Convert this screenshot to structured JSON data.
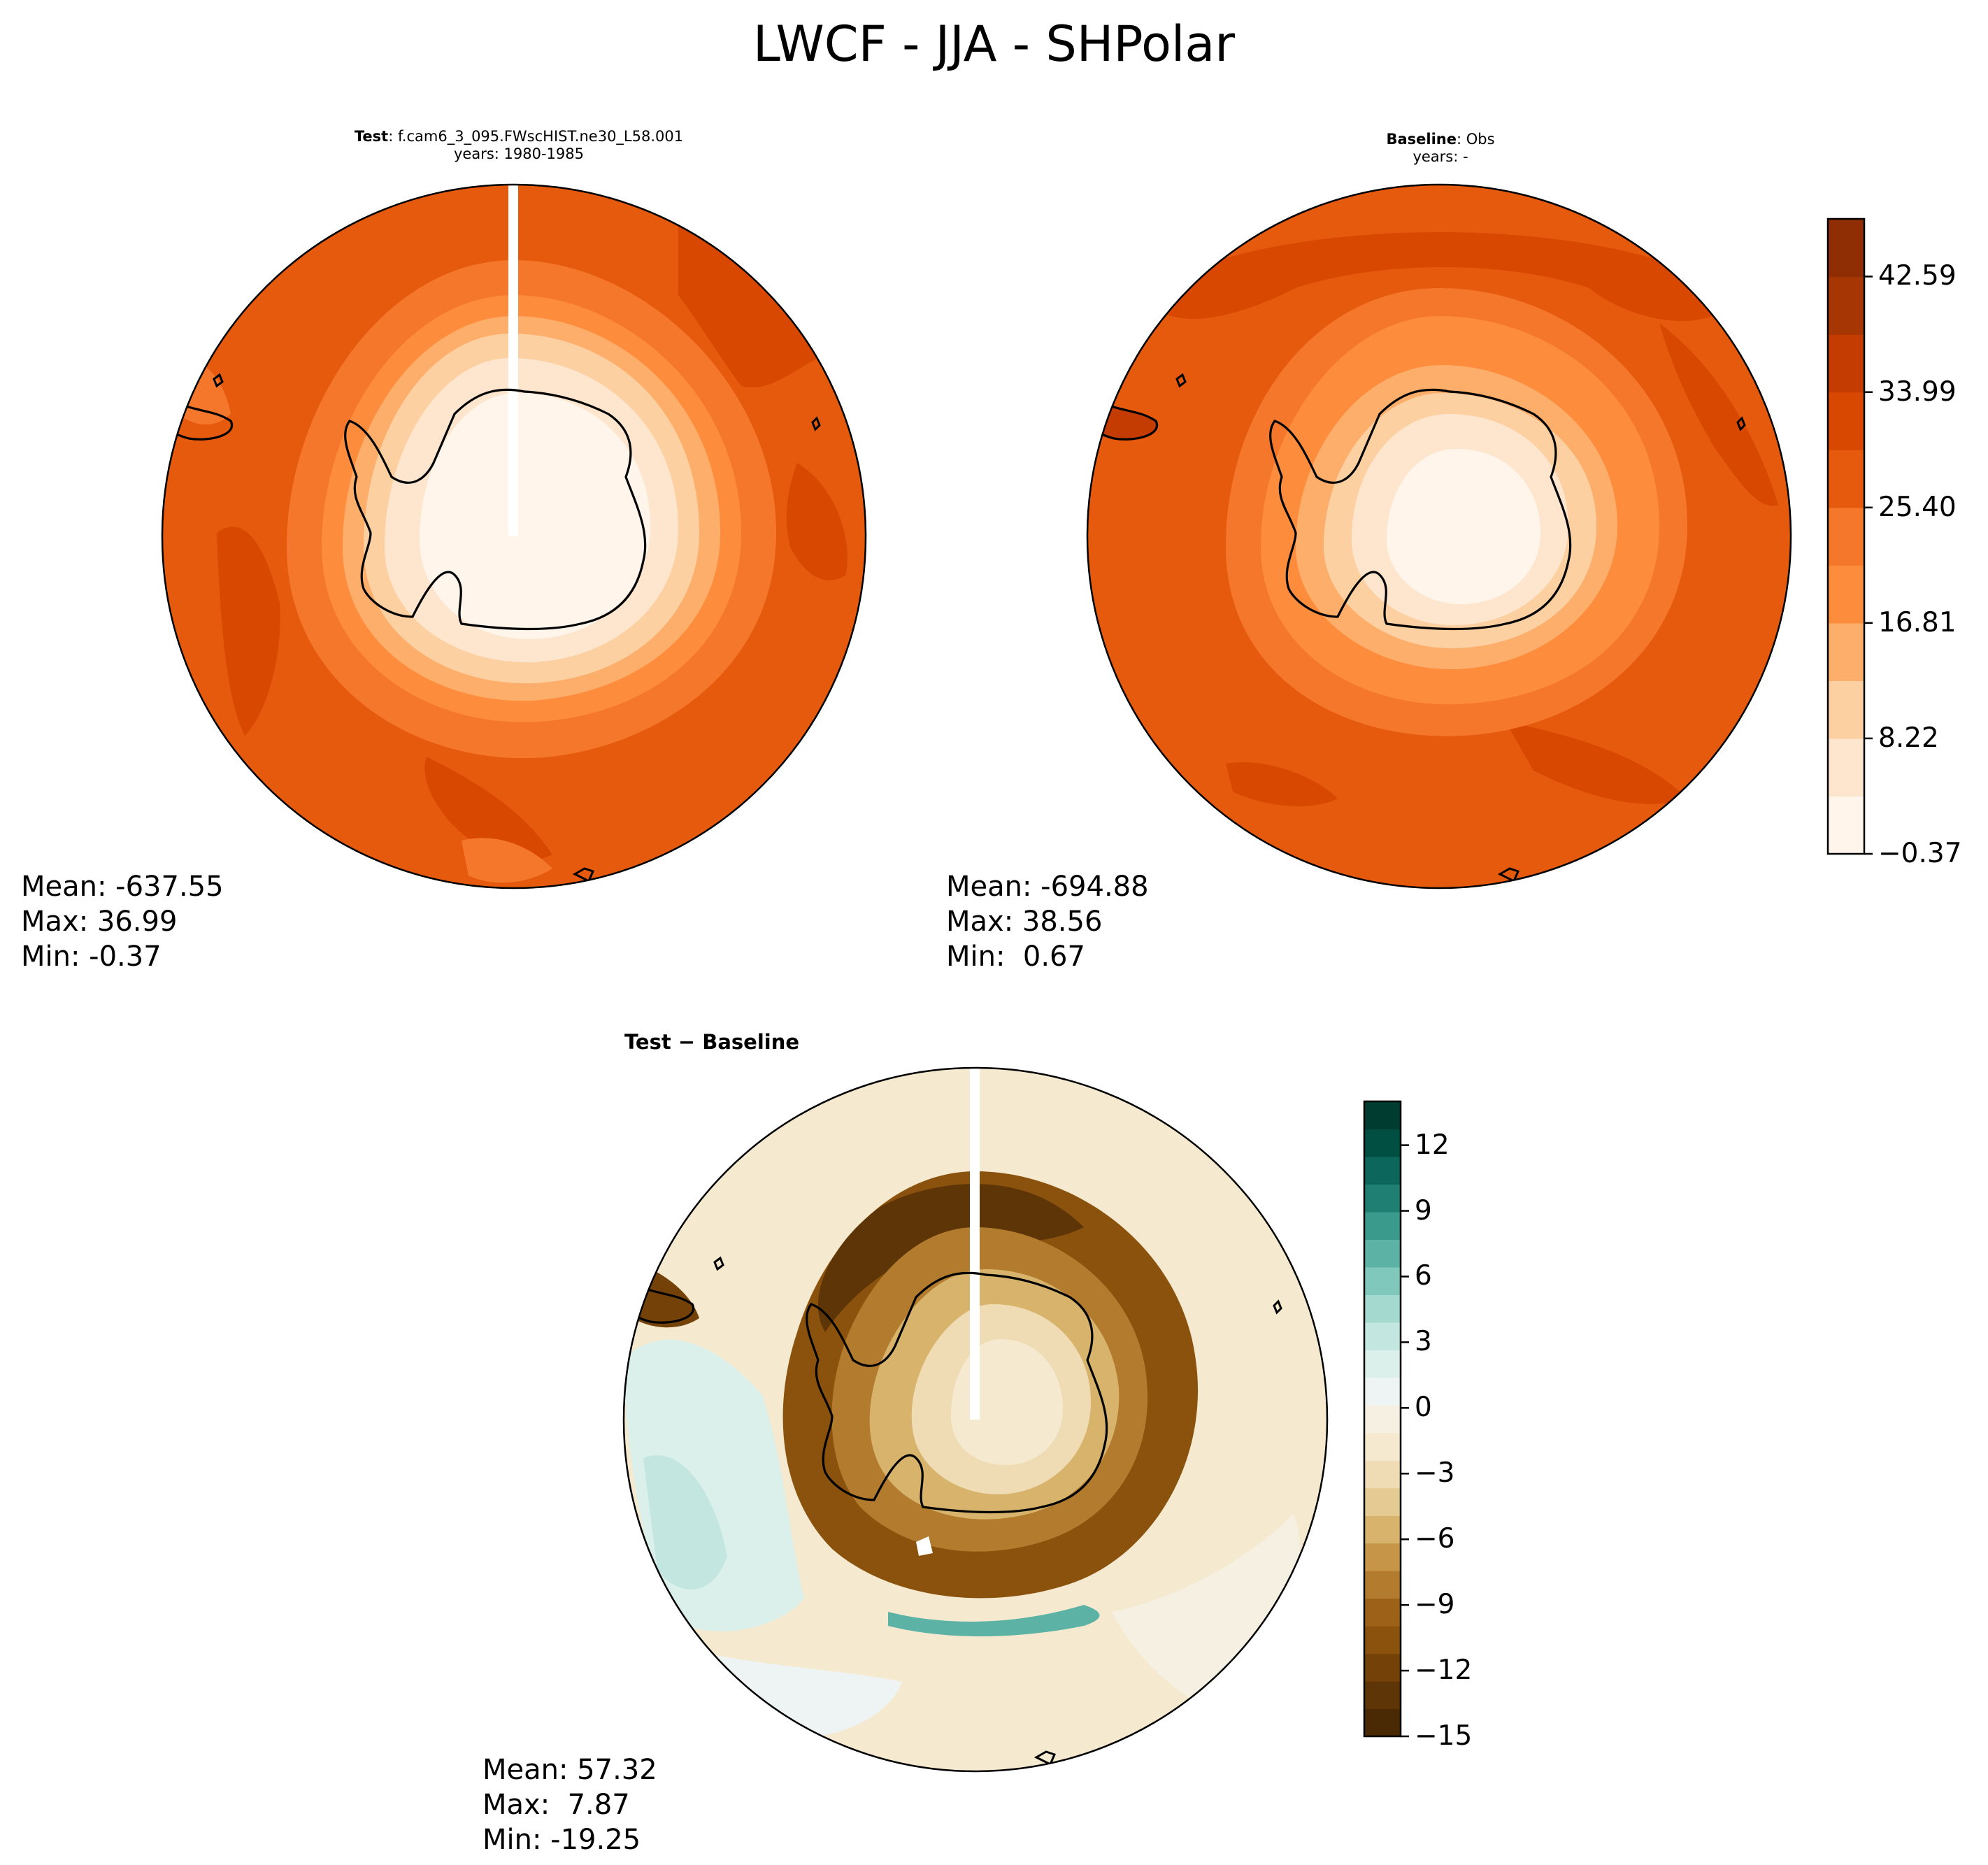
{
  "figure_title": "LWCF - JJA - SHPolar",
  "chart_data": [
    {
      "type": "heatmap",
      "panel": "test",
      "title_bold": "Test",
      "title_rest": ": f.cam6_3_095.FWscHIST.ne30_L58.001",
      "subtitle": "years: 1980-1985",
      "projection": "south-polar-stereographic",
      "stats": {
        "mean": "Mean: -637.55",
        "max": "Max: 36.99",
        "min": "Min: -0.37"
      },
      "field_range": [
        -0.37,
        36.99
      ],
      "colormap": "Oranges",
      "levels": [
        -0.37,
        3.93,
        8.22,
        12.51,
        16.81,
        21.11,
        25.4,
        29.69,
        33.99,
        38.29,
        42.59,
        46.88
      ]
    },
    {
      "type": "heatmap",
      "panel": "baseline",
      "title_bold": "Baseline",
      "title_rest": ": Obs",
      "subtitle": "years: -",
      "projection": "south-polar-stereographic",
      "stats": {
        "mean": "Mean: -694.88",
        "max": "Max: 38.56",
        "min": "Min:  0.67"
      },
      "field_range": [
        0.67,
        38.56
      ],
      "colormap": "Oranges",
      "colorbar": {
        "tick_labels": [
          "42.59",
          "33.99",
          "25.40",
          "16.81",
          "8.22",
          "−0.37"
        ],
        "tick_values": [
          42.59,
          33.99,
          25.4,
          16.81,
          8.22,
          -0.37
        ],
        "range": [
          -0.37,
          46.88
        ],
        "colors": [
          "#fff5eb",
          "#fee6ce",
          "#fdd0a2",
          "#fdae6b",
          "#fd8d3c",
          "#f5772b",
          "#e65a0e",
          "#d94801",
          "#c43c02",
          "#a63603",
          "#8f2d04"
        ]
      }
    },
    {
      "type": "heatmap",
      "panel": "difference",
      "title_bold": "Test − Baseline",
      "projection": "south-polar-stereographic",
      "stats": {
        "mean": "Mean: 57.32",
        "max": "Max:  7.87",
        "min": "Min: -19.25"
      },
      "field_range": [
        -19.25,
        7.87
      ],
      "colormap": "BrBG",
      "colorbar": {
        "tick_labels": [
          "12",
          "9",
          "6",
          "3",
          "0",
          "−3",
          "−6",
          "−9",
          "−12",
          "−15"
        ],
        "tick_values": [
          12,
          9,
          6,
          3,
          0,
          -3,
          -6,
          -9,
          -12,
          -15
        ],
        "range": [
          -15,
          14
        ],
        "colors": [
          "#4a2a05",
          "#5e3506",
          "#744208",
          "#8a520d",
          "#9d6218",
          "#b37b2d",
          "#c69547",
          "#d8b36c",
          "#e5cb93",
          "#efdcb5",
          "#f5ead0",
          "#f6f0e2",
          "#eef4f3",
          "#dbefeb",
          "#c3e7e0",
          "#a3d9cf",
          "#80c8bb",
          "#5cb2a5",
          "#3a9a8c",
          "#1f7f73",
          "#0d665b",
          "#014f43",
          "#003c30"
        ]
      }
    }
  ]
}
